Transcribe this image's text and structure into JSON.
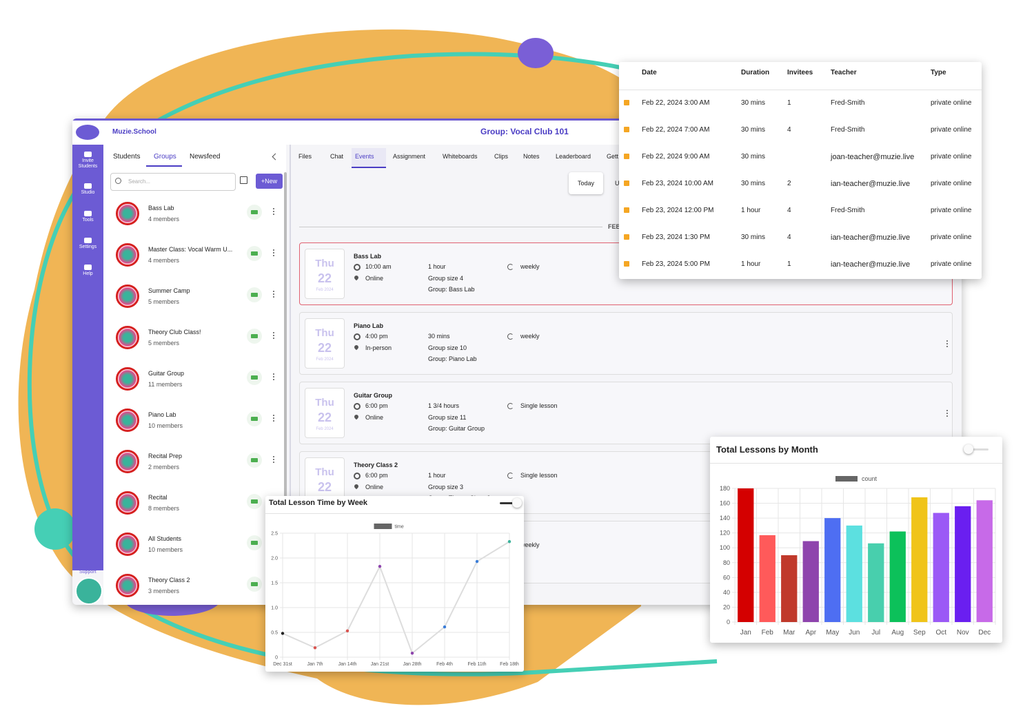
{
  "app": {
    "brand": "Muzie.School",
    "group_title": "Group: Vocal Club 101",
    "nav": [
      "Invite Students",
      "Studio",
      "Tools",
      "Settings",
      "Help"
    ],
    "support": "Support"
  },
  "left_panel": {
    "tabs": [
      "Students",
      "Groups",
      "Newsfeed"
    ],
    "search_placeholder": "Search...",
    "new_button": "+New",
    "groups": [
      {
        "name": "Bass Lab",
        "members": "4 members"
      },
      {
        "name": "Master Class: Vocal Warm U...",
        "members": "4 members"
      },
      {
        "name": "Summer Camp",
        "members": "5 members"
      },
      {
        "name": "Theory Club Class!",
        "members": "5 members"
      },
      {
        "name": "Guitar Group",
        "members": "11 members"
      },
      {
        "name": "Piano Lab",
        "members": "10 members"
      },
      {
        "name": "Recital Prep",
        "members": "2 members"
      },
      {
        "name": "Recital",
        "members": "8 members"
      },
      {
        "name": "All Students",
        "members": "10 members"
      },
      {
        "name": "Theory Class 2",
        "members": "3 members"
      }
    ]
  },
  "main": {
    "tabs": [
      "Files",
      "Chat",
      "Events",
      "Assignment",
      "Whiteboards",
      "Clips",
      "Notes",
      "Leaderboard",
      "Gett"
    ],
    "today_button": "Today",
    "next_button": "U",
    "month_divider": "FEB",
    "events": [
      {
        "weekday": "Thu",
        "day": 22,
        "month": "Feb 2024",
        "title": "Bass Lab",
        "time": "10:00 am",
        "location": "Online",
        "duration": "1 hour",
        "group_size": "Group size 4",
        "group": "Group: Bass Lab",
        "recurrence": "weekly"
      },
      {
        "weekday": "Thu",
        "day": 22,
        "month": "Feb 2024",
        "title": "Piano Lab",
        "time": "4:00 pm",
        "location": "In-person",
        "duration": "30 mins",
        "group_size": "Group size 10",
        "group": "Group: Piano Lab",
        "recurrence": "weekly"
      },
      {
        "weekday": "Thu",
        "day": 22,
        "month": "Feb 2024",
        "title": "Guitar Group",
        "time": "6:00 pm",
        "location": "Online",
        "duration": "1 3/4 hours",
        "group_size": "Group size 11",
        "group": "Group: Guitar Group",
        "recurrence": "Single lesson"
      },
      {
        "weekday": "Thu",
        "day": 22,
        "month": "Feb 2024",
        "title": "Theory Class 2",
        "time": "6:00 pm",
        "location": "Online",
        "duration": "1 hour",
        "group_size": "Group size 3",
        "group": "Group: Theory Class 2",
        "recurrence": "Single lesson"
      },
      {
        "recurrence": "weekly"
      }
    ]
  },
  "schedule_table": {
    "columns": [
      "Date",
      "Duration",
      "Invitees",
      "Teacher",
      "Type"
    ],
    "rows": [
      [
        "Feb 22, 2024 3:00 AM",
        "30 mins",
        1,
        "Fred-Smith",
        "private online"
      ],
      [
        "Feb 22, 2024 7:00 AM",
        "30 mins",
        4,
        "Fred-Smith",
        "private online"
      ],
      [
        "Feb 22, 2024 9:00 AM",
        "30 mins",
        null,
        "joan-teacher@muzie.live",
        "private online"
      ],
      [
        "Feb 23, 2024 10:00 AM",
        "30 mins",
        2,
        "ian-teacher@muzie.live",
        "private online"
      ],
      [
        "Feb 23, 2024 12:00 PM",
        "1 hour",
        4,
        "Fred-Smith",
        "private online"
      ],
      [
        "Feb 23, 2024 1:30 PM",
        "30 mins",
        4,
        "ian-teacher@muzie.live",
        "private online"
      ],
      [
        "Feb 23, 2024 5:00 PM",
        "1 hour",
        1,
        "ian-teacher@muzie.live",
        "private online"
      ]
    ]
  },
  "chart_data": [
    {
      "type": "line",
      "title": "Total Lesson Time by Week",
      "categories": [
        "Dec 31st",
        "Jan 7th",
        "Jan 14th",
        "Jan 21st",
        "Jan 28th",
        "Feb 4th",
        "Feb 11th",
        "Feb 18th"
      ],
      "series": [
        {
          "name": "time",
          "color": "#666666",
          "values": [
            0.48,
            0.19,
            0.53,
            1.83,
            0.08,
            0.61,
            1.93,
            2.33
          ]
        }
      ],
      "line_color": "#dddddd",
      "point_colors": [
        "#222222",
        "#d9534f",
        "#d9534f",
        "#8e44ad",
        "#8e44ad",
        "#3b7dd8",
        "#3b7dd8",
        "#3ab39b"
      ],
      "ylim": [
        0,
        2.5
      ],
      "yticks": [
        0,
        0.5,
        {
          "value": 1,
          "label": "1.0"
        },
        1.5,
        {
          "value": 2,
          "label": "2.0"
        },
        2.5
      ],
      "grid": true
    },
    {
      "type": "bar",
      "title": "Total Lessons by Month",
      "categories": [
        "Jan",
        "Feb",
        "Mar",
        "Apr",
        "May",
        "Jun",
        "Jul",
        "Aug",
        "Sep",
        "Oct",
        "Nov",
        "Dec"
      ],
      "series": [
        {
          "name": "count",
          "color": "#666666",
          "values": [
            180,
            117,
            90,
            109,
            140,
            130,
            106,
            122,
            168,
            147,
            156,
            164
          ]
        }
      ],
      "bar_colors": [
        "#d40000",
        "#ff5a5a",
        "#c0392b",
        "#8e44ad",
        "#4e6ef2",
        "#5ce0e0",
        "#48cfad",
        "#0cc15a",
        "#f0c419",
        "#9b59f6",
        "#6a1ff0",
        "#c76ae8"
      ],
      "ylim": [
        0,
        180
      ],
      "yticks": [
        0,
        20,
        40,
        60,
        80,
        100,
        120,
        140,
        160,
        180
      ],
      "grid": true
    }
  ]
}
